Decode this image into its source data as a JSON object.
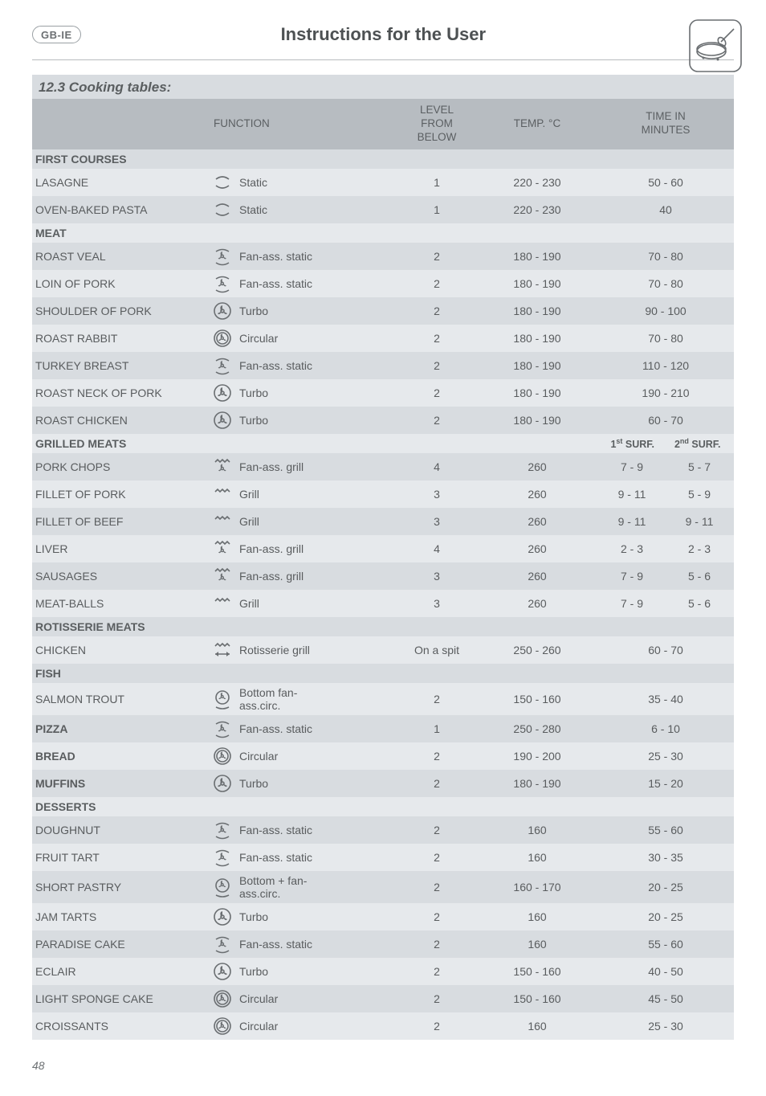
{
  "header": {
    "badge": "GB-IE",
    "title": "Instructions for the User"
  },
  "section_title": "12.3  Cooking tables:",
  "columns": {
    "function": "FUNCTION",
    "level": "LEVEL\nFROM\nBELOW",
    "temp": "TEMP. °C",
    "time": "TIME IN\nMINUTES"
  },
  "surf_labels": {
    "first": "1",
    "first_sup": "st",
    "first_word": " SURF.",
    "second": "2",
    "second_sup": "nd",
    "second_word": " SURF."
  },
  "categories": [
    {
      "name": "FIRST COURSES",
      "rows": [
        {
          "dish": "LASAGNE",
          "icon": "static",
          "func": "Static",
          "level": "1",
          "temp": "220 - 230",
          "time": "50 - 60"
        },
        {
          "dish": "OVEN-BAKED PASTA",
          "icon": "static",
          "func": "Static",
          "level": "1",
          "temp": "220 - 230",
          "time": "40"
        }
      ]
    },
    {
      "name": "MEAT",
      "rows": [
        {
          "dish": "ROAST VEAL",
          "icon": "fanstatic",
          "func": "Fan-ass. static",
          "level": "2",
          "temp": "180 - 190",
          "time": "70 - 80"
        },
        {
          "dish": "LOIN OF PORK",
          "icon": "fanstatic",
          "func": "Fan-ass. static",
          "level": "2",
          "temp": "180 - 190",
          "time": "70 - 80"
        },
        {
          "dish": "SHOULDER OF PORK",
          "icon": "turbo",
          "func": "Turbo",
          "level": "2",
          "temp": "180 - 190",
          "time": "90 - 100"
        },
        {
          "dish": "ROAST RABBIT",
          "icon": "circular",
          "func": "Circular",
          "level": "2",
          "temp": "180 - 190",
          "time": "70 - 80"
        },
        {
          "dish": "TURKEY BREAST",
          "icon": "fanstatic",
          "func": "Fan-ass. static",
          "level": "2",
          "temp": "180 - 190",
          "time": "110 - 120"
        },
        {
          "dish": "ROAST NECK OF PORK",
          "icon": "turbo",
          "func": "Turbo",
          "level": "2",
          "temp": "180 - 190",
          "time": "190 - 210"
        },
        {
          "dish": "ROAST CHICKEN",
          "icon": "turbo",
          "func": "Turbo",
          "level": "2",
          "temp": "180 - 190",
          "time": "60 - 70"
        }
      ]
    },
    {
      "name": "GRILLED MEATS",
      "show_surf_header": true,
      "rows": [
        {
          "dish": "PORK CHOPS",
          "icon": "fangrill",
          "func": "Fan-ass. grill",
          "level": "4",
          "temp": "260",
          "t1": "7 - 9",
          "t2": "5 - 7"
        },
        {
          "dish": "FILLET OF PORK",
          "icon": "grill",
          "func": "Grill",
          "level": "3",
          "temp": "260",
          "t1": "9 - 11",
          "t2": "5 - 9"
        },
        {
          "dish": "FILLET OF BEEF",
          "icon": "grill",
          "func": "Grill",
          "level": "3",
          "temp": "260",
          "t1": "9 - 11",
          "t2": "9 - 11"
        },
        {
          "dish": "LIVER",
          "icon": "fangrill",
          "func": "Fan-ass. grill",
          "level": "4",
          "temp": "260",
          "t1": "2 - 3",
          "t2": "2 - 3"
        },
        {
          "dish": "SAUSAGES",
          "icon": "fangrill",
          "func": "Fan-ass. grill",
          "level": "3",
          "temp": "260",
          "t1": "7 - 9",
          "t2": "5 - 6"
        },
        {
          "dish": "MEAT-BALLS",
          "icon": "grill",
          "func": "Grill",
          "level": "3",
          "temp": "260",
          "t1": "7 - 9",
          "t2": "5 - 6"
        }
      ]
    },
    {
      "name": "ROTISSERIE MEATS",
      "rows": [
        {
          "dish": "CHICKEN",
          "icon": "rotisserie",
          "func": "Rotisserie grill",
          "level": "On a spit",
          "temp": "250 - 260",
          "time": "60 - 70"
        }
      ]
    },
    {
      "name": "FISH",
      "rows": [
        {
          "dish": "SALMON TROUT",
          "icon": "bottomfan",
          "func": "Bottom fan-\nass.circ.",
          "level": "2",
          "temp": "150 - 160",
          "time": "35 - 40"
        }
      ]
    },
    {
      "name": "PIZZA",
      "inline": true,
      "rows": [
        {
          "dish": "PIZZA",
          "bold": true,
          "icon": "fanstatic",
          "func": "Fan-ass. static",
          "level": "1",
          "temp": "250 - 280",
          "time": "6 - 10"
        }
      ]
    },
    {
      "name": "BREAD",
      "inline": true,
      "rows": [
        {
          "dish": "BREAD",
          "bold": true,
          "icon": "circular",
          "func": "Circular",
          "level": "2",
          "temp": "190 - 200",
          "time": "25 - 30"
        }
      ]
    },
    {
      "name": "MUFFINS",
      "inline": true,
      "rows": [
        {
          "dish": "MUFFINS",
          "bold": true,
          "icon": "turbo",
          "func": "Turbo",
          "level": "2",
          "temp": "180 - 190",
          "time": "15 - 20"
        }
      ]
    },
    {
      "name": "DESSERTS",
      "rows": [
        {
          "dish": "DOUGHNUT",
          "icon": "fanstatic",
          "func": "Fan-ass. static",
          "level": "2",
          "temp": "160",
          "time": "55 - 60"
        },
        {
          "dish": "FRUIT TART",
          "icon": "fanstatic",
          "func": "Fan-ass. static",
          "level": "2",
          "temp": "160",
          "time": "30 - 35"
        },
        {
          "dish": "SHORT PASTRY",
          "icon": "bottomfan",
          "func": "Bottom + fan-\nass.circ.",
          "level": "2",
          "temp": "160 - 170",
          "time": "20 - 25"
        },
        {
          "dish": "JAM TARTS",
          "icon": "turbo",
          "func": "Turbo",
          "level": "2",
          "temp": "160",
          "time": "20 - 25"
        },
        {
          "dish": "PARADISE CAKE",
          "icon": "fanstatic",
          "func": "Fan-ass. static",
          "level": "2",
          "temp": "160",
          "time": "55 - 60"
        },
        {
          "dish": "ECLAIR",
          "icon": "turbo",
          "func": "Turbo",
          "level": "2",
          "temp": "150 - 160",
          "time": "40 - 50"
        },
        {
          "dish": "LIGHT SPONGE CAKE",
          "icon": "circular",
          "func": "Circular",
          "level": "2",
          "temp": "150 - 160",
          "time": "45 - 50"
        },
        {
          "dish": "CROISSANTS",
          "icon": "circular",
          "func": "Circular",
          "level": "2",
          "temp": "160",
          "time": "25 - 30"
        }
      ]
    }
  ],
  "icons": {
    "static": "static",
    "fanstatic": "fanstatic",
    "turbo": "turbo",
    "circular": "circular",
    "fangrill": "fangrill",
    "grill": "grill",
    "rotisserie": "rotisserie",
    "bottomfan": "bottomfan"
  },
  "page_number": "48",
  "colors": {
    "header_bg": "#b7bcc1",
    "alt_a": "#d8dce0",
    "alt_b": "#e6e9ec",
    "text": "#595c5e"
  }
}
